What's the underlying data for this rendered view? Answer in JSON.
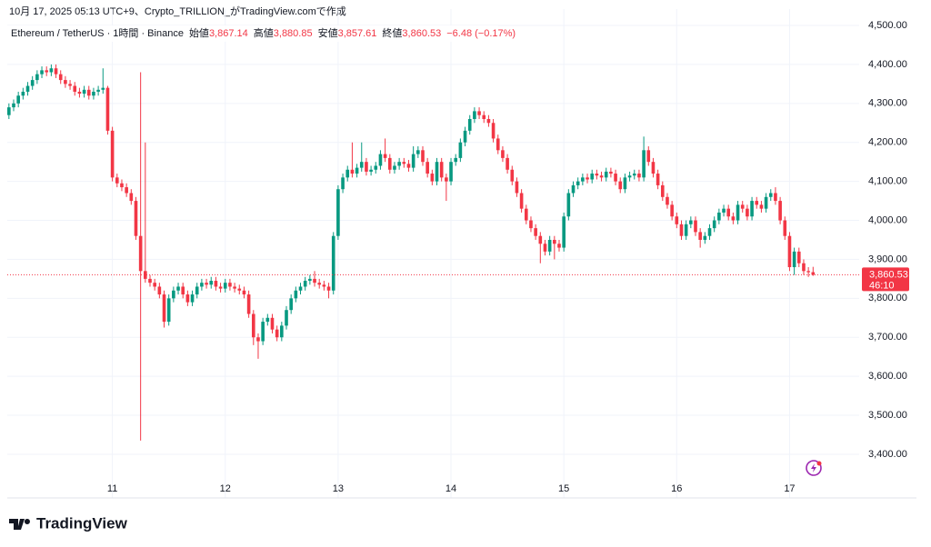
{
  "header": {
    "caption": "10月 17, 2025 05:13 UTC+9、Crypto_TRILLION_がTradingView.comで作成"
  },
  "brand": "TradingView",
  "chart_data": {
    "type": "candlestick",
    "title": "Ethereum / TetherUS · 1時間 · Binance",
    "ohlc_legend": [
      {
        "label": "始値",
        "value": "3,867.14"
      },
      {
        "label": "高値",
        "value": "3,880.85"
      },
      {
        "label": "安値",
        "value": "3,857.61"
      },
      {
        "label": "終値",
        "value": "3,860.53"
      }
    ],
    "change": "−6.48 (−0.17%)",
    "last_price_label": "3,860.53",
    "countdown": "46:10",
    "up_color": "#089981",
    "down_color": "#f23645",
    "open": [
      4270,
      4290,
      4300,
      4320,
      4330,
      4345,
      4360,
      4375,
      4385,
      4380,
      4390,
      4375,
      4360,
      4350,
      4345,
      4330,
      4325,
      4335,
      4320,
      4330,
      4335,
      4340,
      4230,
      4110,
      4095,
      4085,
      4070,
      4050,
      3960,
      3870,
      3850,
      3840,
      3830,
      3810,
      3740,
      3800,
      3820,
      3830,
      3810,
      3790,
      3810,
      3830,
      3840,
      3835,
      3845,
      3830,
      3825,
      3840,
      3830,
      3825,
      3820,
      3810,
      3760,
      3700,
      3690,
      3740,
      3750,
      3720,
      3700,
      3730,
      3770,
      3800,
      3820,
      3830,
      3845,
      3850,
      3840,
      3835,
      3830,
      3820,
      3960,
      4080,
      4110,
      4130,
      4120,
      4135,
      4150,
      4125,
      4130,
      4140,
      4170,
      4160,
      4130,
      4140,
      4150,
      4145,
      4135,
      4170,
      4180,
      4150,
      4120,
      4100,
      4150,
      4110,
      4100,
      4150,
      4160,
      4200,
      4230,
      4260,
      4280,
      4270,
      4260,
      4250,
      4210,
      4180,
      4160,
      4130,
      4100,
      4070,
      4030,
      4000,
      3980,
      3960,
      3940,
      3920,
      3950,
      3940,
      3930,
      4010,
      4070,
      4090,
      4100,
      4110,
      4105,
      4120,
      4115,
      4110,
      4125,
      4120,
      4100,
      4080,
      4110,
      4115,
      4120,
      4110,
      4180,
      4150,
      4120,
      4090,
      4060,
      4040,
      4010,
      3990,
      3960,
      3990,
      4000,
      3970,
      3950,
      3960,
      3980,
      4000,
      4020,
      4030,
      4010,
      4000,
      4040,
      4030,
      4010,
      4050,
      4040,
      4030,
      4060,
      4070,
      4050,
      4000,
      3960,
      3880,
      3920,
      3890,
      3870,
      3867.14
    ],
    "high": [
      4300,
      4310,
      4330,
      4340,
      4355,
      4370,
      4385,
      4395,
      4395,
      4400,
      4400,
      4385,
      4370,
      4360,
      4355,
      4340,
      4345,
      4345,
      4340,
      4345,
      4390,
      4345,
      4240,
      4120,
      4105,
      4095,
      4080,
      4060,
      4380,
      4200,
      3860,
      3850,
      3840,
      3820,
      3810,
      3830,
      3840,
      3840,
      3820,
      3820,
      3840,
      3850,
      3850,
      3855,
      3855,
      3840,
      3850,
      3850,
      3840,
      3835,
      3830,
      3820,
      3770,
      3710,
      3750,
      3760,
      3760,
      3730,
      3740,
      3780,
      3810,
      3830,
      3840,
      3855,
      3860,
      3870,
      3850,
      3845,
      3840,
      3970,
      4090,
      4120,
      4140,
      4200,
      4145,
      4200,
      4160,
      4140,
      4150,
      4180,
      4210,
      4170,
      4150,
      4160,
      4160,
      4155,
      4190,
      4190,
      4190,
      4160,
      4130,
      4160,
      4160,
      4120,
      4160,
      4170,
      4210,
      4240,
      4270,
      4290,
      4290,
      4280,
      4270,
      4260,
      4220,
      4190,
      4170,
      4140,
      4110,
      4080,
      4040,
      4010,
      3990,
      3970,
      3950,
      3960,
      3960,
      3950,
      4020,
      4080,
      4100,
      4110,
      4120,
      4120,
      4130,
      4130,
      4125,
      4135,
      4135,
      4130,
      4110,
      4120,
      4125,
      4130,
      4130,
      4215,
      4190,
      4160,
      4130,
      4100,
      4070,
      4050,
      4020,
      4000,
      4000,
      4010,
      4010,
      3980,
      3970,
      3990,
      4010,
      4030,
      4040,
      4040,
      4020,
      4050,
      4050,
      4040,
      4060,
      4060,
      4050,
      4070,
      4080,
      4085,
      4060,
      4010,
      3970,
      3930,
      3930,
      3900,
      3880,
      3880.85
    ],
    "low": [
      4260,
      4280,
      4290,
      4310,
      4320,
      4335,
      4350,
      4365,
      4370,
      4370,
      4365,
      4350,
      4340,
      4335,
      4320,
      4315,
      4315,
      4310,
      4310,
      4320,
      4325,
      4220,
      4100,
      4085,
      4075,
      4060,
      4040,
      3950,
      3435,
      3840,
      3830,
      3820,
      3800,
      3725,
      3730,
      3790,
      3810,
      3800,
      3780,
      3780,
      3800,
      3820,
      3825,
      3825,
      3820,
      3815,
      3815,
      3820,
      3815,
      3810,
      3800,
      3750,
      3680,
      3645,
      3680,
      3730,
      3710,
      3690,
      3690,
      3720,
      3760,
      3790,
      3810,
      3820,
      3835,
      3830,
      3825,
      3820,
      3800,
      3810,
      3950,
      4070,
      4100,
      4110,
      4110,
      4125,
      4115,
      4115,
      4120,
      4130,
      4150,
      4120,
      4120,
      4130,
      4135,
      4125,
      4125,
      4160,
      4140,
      4110,
      4090,
      4090,
      4100,
      4050,
      4090,
      4140,
      4150,
      4190,
      4220,
      4250,
      4260,
      4250,
      4240,
      4200,
      4170,
      4150,
      4120,
      4090,
      4060,
      4020,
      3990,
      3970,
      3950,
      3890,
      3910,
      3910,
      3900,
      3920,
      3920,
      4000,
      4060,
      4080,
      4090,
      4095,
      4095,
      4105,
      4100,
      4100,
      4110,
      4090,
      4070,
      4070,
      4100,
      4105,
      4100,
      4100,
      4140,
      4110,
      4080,
      4050,
      4030,
      4000,
      3980,
      3950,
      3950,
      3980,
      3960,
      3930,
      3940,
      3950,
      3970,
      3990,
      4010,
      4000,
      3990,
      3990,
      4020,
      4000,
      4000,
      4030,
      4020,
      4020,
      4050,
      4040,
      3990,
      3950,
      3870,
      3860,
      3880,
      3860,
      3855,
      3857.61
    ],
    "close": [
      4290,
      4300,
      4320,
      4330,
      4345,
      4360,
      4375,
      4385,
      4380,
      4390,
      4375,
      4360,
      4350,
      4345,
      4330,
      4325,
      4335,
      4320,
      4330,
      4335,
      4340,
      4230,
      4110,
      4095,
      4085,
      4070,
      4050,
      3960,
      3870,
      3850,
      3840,
      3830,
      3810,
      3740,
      3800,
      3820,
      3830,
      3810,
      3790,
      3810,
      3830,
      3840,
      3835,
      3845,
      3830,
      3825,
      3840,
      3830,
      3825,
      3820,
      3810,
      3760,
      3700,
      3690,
      3740,
      3750,
      3720,
      3700,
      3730,
      3770,
      3800,
      3820,
      3830,
      3845,
      3850,
      3840,
      3835,
      3830,
      3820,
      3960,
      4080,
      4110,
      4130,
      4120,
      4135,
      4150,
      4125,
      4130,
      4140,
      4170,
      4160,
      4130,
      4140,
      4150,
      4145,
      4135,
      4170,
      4180,
      4150,
      4120,
      4100,
      4150,
      4110,
      4100,
      4150,
      4160,
      4200,
      4230,
      4260,
      4280,
      4270,
      4260,
      4250,
      4210,
      4180,
      4160,
      4130,
      4100,
      4070,
      4030,
      4000,
      3980,
      3960,
      3940,
      3920,
      3950,
      3940,
      3930,
      4010,
      4070,
      4090,
      4100,
      4110,
      4105,
      4120,
      4115,
      4110,
      4125,
      4120,
      4100,
      4080,
      4110,
      4115,
      4120,
      4110,
      4180,
      4150,
      4120,
      4090,
      4060,
      4040,
      4010,
      3990,
      3960,
      3990,
      4000,
      3970,
      3950,
      3960,
      3980,
      4000,
      4020,
      4030,
      4010,
      4000,
      4040,
      4030,
      4010,
      4050,
      4040,
      4030,
      4060,
      4070,
      4050,
      4000,
      3960,
      3880,
      3920,
      3890,
      3870,
      3867,
      3860.53
    ],
    "xlim": [
      -1.9,
      180.8
    ],
    "xticks": [
      {
        "value": 22,
        "label": "11"
      },
      {
        "value": 46,
        "label": "12"
      },
      {
        "value": 70,
        "label": "13"
      },
      {
        "value": 94,
        "label": "14"
      },
      {
        "value": 118,
        "label": "15"
      },
      {
        "value": 142,
        "label": "16"
      },
      {
        "value": 166,
        "label": "17"
      }
    ],
    "ylim": [
      3288,
      4542
    ],
    "yticks": [
      {
        "value": 3400,
        "label": "3,400.00"
      },
      {
        "value": 3500,
        "label": "3,500.00"
      },
      {
        "value": 3600,
        "label": "3,600.00"
      },
      {
        "value": 3700,
        "label": "3,700.00"
      },
      {
        "value": 3800,
        "label": "3,800.00"
      },
      {
        "value": 3900,
        "label": "3,900.00"
      },
      {
        "value": 4000,
        "label": "4,000.00"
      },
      {
        "value": 4100,
        "label": "4,100.00"
      },
      {
        "value": 4200,
        "label": "4,200.00"
      },
      {
        "value": 4300,
        "label": "4,300.00"
      },
      {
        "value": 4400,
        "label": "4,400.00"
      },
      {
        "value": 4500,
        "label": "4,500.00"
      }
    ],
    "grid": true
  }
}
